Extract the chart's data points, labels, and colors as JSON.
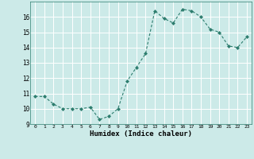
{
  "x": [
    0,
    1,
    2,
    3,
    4,
    5,
    6,
    7,
    8,
    9,
    10,
    11,
    12,
    13,
    14,
    15,
    16,
    17,
    18,
    19,
    20,
    21,
    22,
    23
  ],
  "y": [
    10.8,
    10.8,
    10.3,
    10.0,
    10.0,
    10.0,
    10.1,
    9.3,
    9.5,
    10.0,
    11.8,
    12.7,
    13.6,
    16.4,
    15.9,
    15.6,
    16.5,
    16.4,
    16.0,
    15.2,
    15.0,
    14.1,
    14.0,
    14.7
  ],
  "xlabel": "Humidex (Indice chaleur)",
  "ylim": [
    9,
    17
  ],
  "xlim_min": -0.5,
  "xlim_max": 23.5,
  "yticks": [
    9,
    10,
    11,
    12,
    13,
    14,
    15,
    16
  ],
  "xticks": [
    0,
    1,
    2,
    3,
    4,
    5,
    6,
    7,
    8,
    9,
    10,
    11,
    12,
    13,
    14,
    15,
    16,
    17,
    18,
    19,
    20,
    21,
    22,
    23
  ],
  "line_color": "#2d7d6e",
  "marker_color": "#2d7d6e",
  "bg_color": "#cceae8",
  "grid_color": "#b0dbd8"
}
